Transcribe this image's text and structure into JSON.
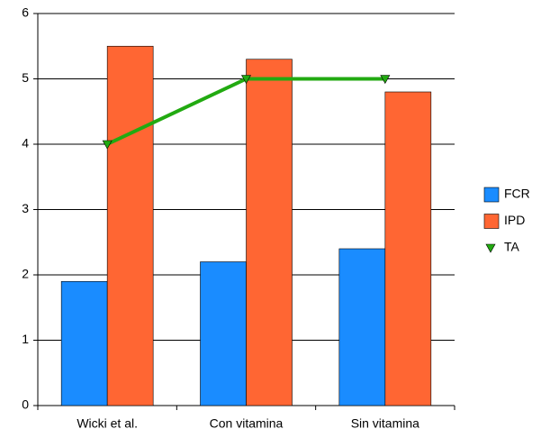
{
  "chart_data": {
    "type": "bar",
    "categories": [
      "Wicki et al.",
      "Con vitamina",
      "Sin vitamina"
    ],
    "series": [
      {
        "name": "FCR",
        "type": "bar",
        "color": "#1a8cff",
        "values": [
          1.9,
          2.2,
          2.4
        ]
      },
      {
        "name": "IPD",
        "type": "bar",
        "color": "#ff6633",
        "values": [
          5.5,
          5.3,
          4.8
        ]
      },
      {
        "name": "TA",
        "type": "line",
        "color": "#22aa11",
        "values": [
          4,
          5,
          5
        ]
      }
    ],
    "ylim": [
      0,
      6
    ],
    "yticks": [
      0,
      1,
      2,
      3,
      4,
      5,
      6
    ],
    "grid": true,
    "legend": "right"
  }
}
